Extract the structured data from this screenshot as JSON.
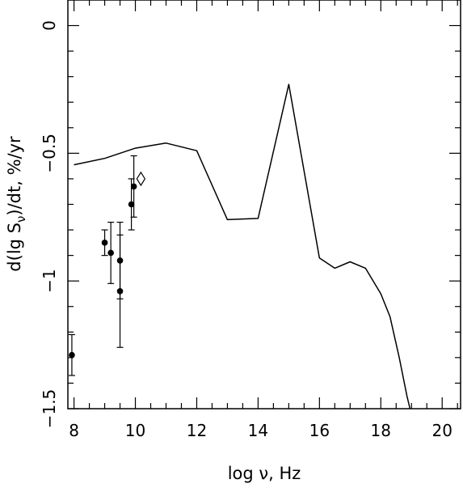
{
  "chart_data": {
    "type": "line",
    "xlabel": "log ν, Hz",
    "ylabel": "d(lg S_ν)/dt, %/yr",
    "ylabel_parts": {
      "prefix": "d(lg S",
      "subscript": "ν",
      "suffix": ")/dt, %/yr"
    },
    "xlim": [
      7.8,
      20.6
    ],
    "ylim": [
      -1.5,
      0.1
    ],
    "x_ticks": [
      8,
      10,
      12,
      14,
      16,
      18,
      20
    ],
    "x_tick_labels": [
      "8",
      "10",
      "12",
      "14",
      "16",
      "18",
      "20"
    ],
    "y_ticks": [
      0,
      -0.5,
      -1,
      -1.5
    ],
    "y_tick_labels": [
      "0",
      "−0.5",
      "−1",
      "−1.5"
    ],
    "x_minor_step": 0.5,
    "y_minor_step": 0.1,
    "grid": false,
    "series": [
      {
        "style": "line",
        "x": [
          8.0,
          9.0,
          10.0,
          11.0,
          12.0,
          13.0,
          14.0,
          15.0,
          16.0,
          16.5,
          17.0,
          17.5,
          18.0,
          18.3,
          18.6,
          18.85,
          18.95
        ],
        "y": [
          -0.545,
          -0.52,
          -0.48,
          -0.46,
          -0.49,
          -0.76,
          -0.755,
          -0.23,
          -0.91,
          -0.95,
          -0.925,
          -0.95,
          -1.05,
          -1.14,
          -1.3,
          -1.45,
          -1.5
        ]
      },
      {
        "style": "points-with-errorbars",
        "marker": "filled-circle",
        "points": [
          {
            "x": 7.93,
            "y": -1.29,
            "err_low": 0.08,
            "err_high": 0.08
          },
          {
            "x": 9.0,
            "y": -0.85,
            "err_low": 0.05,
            "err_high": 0.05
          },
          {
            "x": 9.2,
            "y": -0.89,
            "err_low": 0.12,
            "err_high": 0.12
          },
          {
            "x": 9.5,
            "y": -0.92,
            "err_low": 0.15,
            "err_high": 0.15
          },
          {
            "x": 9.5,
            "y": -1.04,
            "err_low": 0.22,
            "err_high": 0.22
          },
          {
            "x": 9.87,
            "y": -0.7,
            "err_low": 0.1,
            "err_high": 0.1
          },
          {
            "x": 9.95,
            "y": -0.63,
            "err_low": 0.12,
            "err_high": 0.12
          }
        ]
      },
      {
        "style": "points",
        "marker": "open-diamond",
        "points": [
          {
            "x": 10.18,
            "y": -0.6
          }
        ]
      }
    ]
  }
}
